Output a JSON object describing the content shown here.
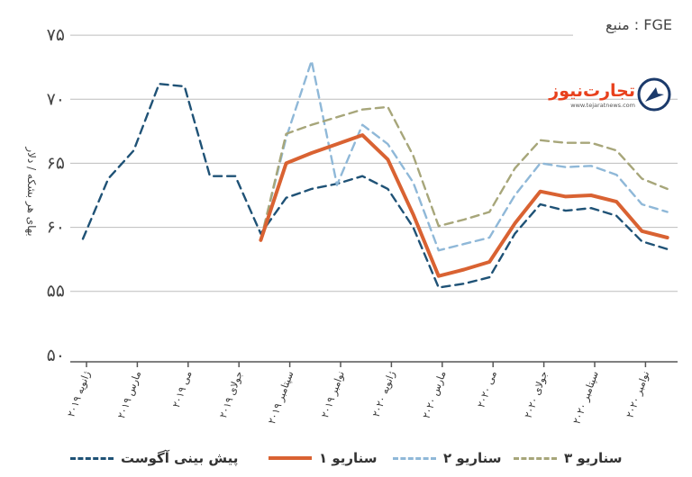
{
  "source_label": "منبع : FGE",
  "brand": {
    "name": "تجارت‌نیوز",
    "url": "www.tejaratnews.com",
    "accent_color": "#e8401c",
    "dark_color": "#1b3a6b"
  },
  "chart_data": {
    "type": "line",
    "title": "",
    "xlabel": "",
    "ylabel": "بهای هر بشکه / دلار",
    "ylim": [
      49.5,
      75.5
    ],
    "yticks": [
      75,
      70,
      65,
      60,
      55,
      50
    ],
    "ytick_labels": [
      "۷۵",
      "۷۰",
      "۶۵",
      "۶۰",
      "۵۵",
      "۵۰"
    ],
    "grid": true,
    "legend_position": "bottom",
    "x_ticks": [
      {
        "i": 0,
        "label": "ژانویه ۲۰۱۹"
      },
      {
        "i": 2,
        "label": "مارس ۲۰۱۹"
      },
      {
        "i": 4,
        "label": "می ۲۰۱۹"
      },
      {
        "i": 6,
        "label": "جولای ۲۰۱۹"
      },
      {
        "i": 8,
        "label": "سپتامبر ۲۰۱۹"
      },
      {
        "i": 10,
        "label": "نوامبر ۲۰۱۹"
      },
      {
        "i": 12,
        "label": "ژانویه ۲۰۲۰"
      },
      {
        "i": 14,
        "label": "مارس ۲۰۲۰"
      },
      {
        "i": 16,
        "label": "می ۲۰۲۰"
      },
      {
        "i": 18,
        "label": "جولای ۲۰۲۰"
      },
      {
        "i": 20,
        "label": "سپتامبر ۲۰۲۰"
      },
      {
        "i": 22,
        "label": "نوامبر ۲۰۲۰"
      }
    ],
    "series": [
      {
        "name": "پیش بینی آگوست",
        "color": "#1f5276",
        "style": "dashed",
        "points": [
          [
            0,
            59.1
          ],
          [
            1,
            63.8
          ],
          [
            2,
            66.0
          ],
          [
            3,
            71.2
          ],
          [
            4,
            71.0
          ],
          [
            5,
            64.0
          ],
          [
            6,
            64.0
          ],
          [
            7,
            59.5
          ],
          [
            8,
            62.3
          ],
          [
            9,
            63.0
          ],
          [
            10,
            63.4
          ],
          [
            11,
            64.0
          ],
          [
            12,
            63.0
          ],
          [
            13,
            60.0
          ],
          [
            14,
            55.3
          ],
          [
            15,
            55.6
          ],
          [
            16,
            56.1
          ],
          [
            17,
            59.5
          ],
          [
            18,
            61.8
          ],
          [
            19,
            61.3
          ],
          [
            20,
            61.5
          ],
          [
            21,
            60.9
          ],
          [
            22,
            58.9
          ],
          [
            23,
            58.3
          ]
        ]
      },
      {
        "name": "سناریو ۱",
        "color": "#d96232",
        "style": "solid",
        "points": [
          [
            7,
            59.0
          ],
          [
            8,
            65.0
          ],
          [
            9,
            65.8
          ],
          [
            10,
            66.5
          ],
          [
            11,
            67.2
          ],
          [
            12,
            65.3
          ],
          [
            13,
            61.0
          ],
          [
            14,
            56.2
          ],
          [
            15,
            56.7
          ],
          [
            16,
            57.3
          ],
          [
            17,
            60.3
          ],
          [
            18,
            62.8
          ],
          [
            19,
            62.4
          ],
          [
            20,
            62.5
          ],
          [
            21,
            62.0
          ],
          [
            22,
            59.7
          ],
          [
            23,
            59.2
          ]
        ]
      },
      {
        "name": "سناریو ۲",
        "color": "#8fb8d8",
        "style": "dashed",
        "points": [
          [
            7,
            59.0
          ],
          [
            8,
            67.0
          ],
          [
            9,
            73.0
          ],
          [
            10,
            63.3
          ],
          [
            11,
            68.0
          ],
          [
            12,
            66.5
          ],
          [
            13,
            63.5
          ],
          [
            14,
            58.2
          ],
          [
            15,
            58.7
          ],
          [
            16,
            59.2
          ],
          [
            17,
            62.5
          ],
          [
            18,
            65.0
          ],
          [
            19,
            64.7
          ],
          [
            20,
            64.8
          ],
          [
            21,
            64.1
          ],
          [
            22,
            61.8
          ],
          [
            23,
            61.2
          ]
        ]
      },
      {
        "name": "سناریو ۳",
        "color": "#a7a67a",
        "style": "dashed",
        "points": [
          [
            7,
            59.0
          ],
          [
            8,
            67.3
          ],
          [
            9,
            68.0
          ],
          [
            10,
            68.6
          ],
          [
            11,
            69.2
          ],
          [
            12,
            69.4
          ],
          [
            13,
            65.6
          ],
          [
            14,
            60.1
          ],
          [
            15,
            60.6
          ],
          [
            16,
            61.2
          ],
          [
            17,
            64.6
          ],
          [
            18,
            66.8
          ],
          [
            19,
            66.6
          ],
          [
            20,
            66.6
          ],
          [
            21,
            66.0
          ],
          [
            22,
            63.8
          ],
          [
            23,
            63.0
          ]
        ]
      }
    ]
  }
}
